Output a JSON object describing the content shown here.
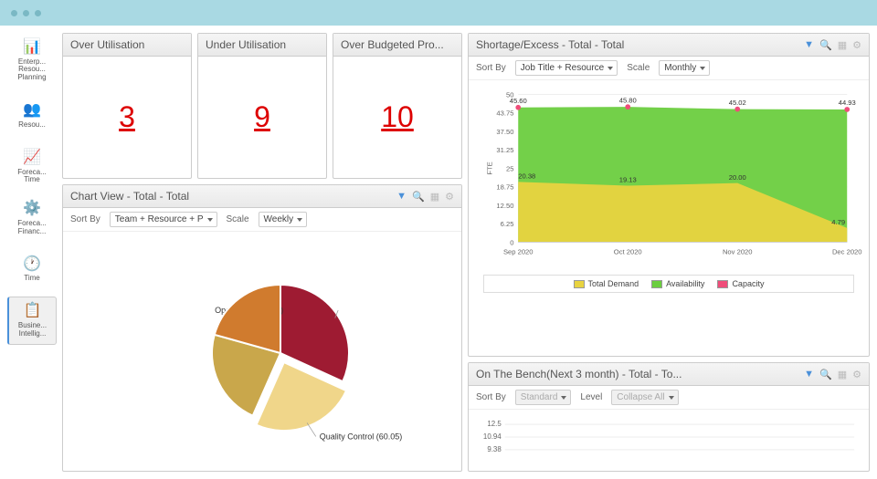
{
  "sidebar": {
    "items": [
      {
        "label": "Enterp... Resou... Planning",
        "icon": "📊"
      },
      {
        "label": "Resou...",
        "icon": "👥"
      },
      {
        "label": "Foreca... Time",
        "icon": "📈"
      },
      {
        "label": "Foreca... Financ...",
        "icon": "⚙️"
      },
      {
        "label": "Time",
        "icon": "🕐"
      },
      {
        "label": "Busine... Intellig...",
        "icon": "📋"
      }
    ]
  },
  "kpis": [
    {
      "title": "Over Utilisation",
      "value": "3"
    },
    {
      "title": "Under Utilisation",
      "value": "9"
    },
    {
      "title": "Over Budgeted Pro...",
      "value": "10"
    }
  ],
  "chartView": {
    "title": "Chart View - Total - Total",
    "sortByLabel": "Sort By",
    "sortByValue": "Team + Resource + P",
    "scaleLabel": "Scale",
    "scaleValue": "Weekly",
    "pie": {
      "slices": [
        {
          "label": "Operations (77.00)",
          "value": 77,
          "color": "#9e1b32"
        },
        {
          "label": "Quality Control (60.05)",
          "value": 60.05,
          "color": "#f0d68a"
        },
        {
          "label": "",
          "value": 55,
          "color": "#c9a74b"
        },
        {
          "label": "",
          "value": 50,
          "color": "#d07b2e"
        }
      ]
    }
  },
  "shortage": {
    "title": "Shortage/Excess - Total - Total",
    "sortByLabel": "Sort By",
    "sortByValue": "Job Title + Resource",
    "scaleLabel": "Scale",
    "scaleValue": "Monthly",
    "ylabel": "FTE",
    "ylim": [
      0,
      50
    ],
    "ytick_step": 6.25,
    "xcats": [
      "Sep 2020",
      "Oct 2020",
      "Nov 2020",
      "Dec 2020"
    ],
    "series": {
      "capacity": {
        "values": [
          45.6,
          45.8,
          45.02,
          44.93
        ],
        "color": "#ef4d7a"
      },
      "availability": {
        "values": [
          45.6,
          45.8,
          45.02,
          44.93
        ],
        "fill": "#6bce3f"
      },
      "demand": {
        "values": [
          20.38,
          19.13,
          20.0,
          4.79
        ],
        "fill": "#e8d340"
      }
    },
    "legend": [
      {
        "label": "Total Demand",
        "color": "#e8d340"
      },
      {
        "label": "Availability",
        "color": "#6bce3f"
      },
      {
        "label": "Capacity",
        "color": "#ef4d7a"
      }
    ]
  },
  "bench": {
    "title": "On The Bench(Next 3 month) - Total - To...",
    "sortByLabel": "Sort By",
    "sortByValue": "Standard",
    "levelLabel": "Level",
    "levelValue": "Collapse All",
    "yticks": [
      "12.5",
      "10.94",
      "9.38"
    ]
  },
  "tools": {
    "filter": "⚗",
    "search": "🔍",
    "table": "▦",
    "gear": "⚙"
  }
}
